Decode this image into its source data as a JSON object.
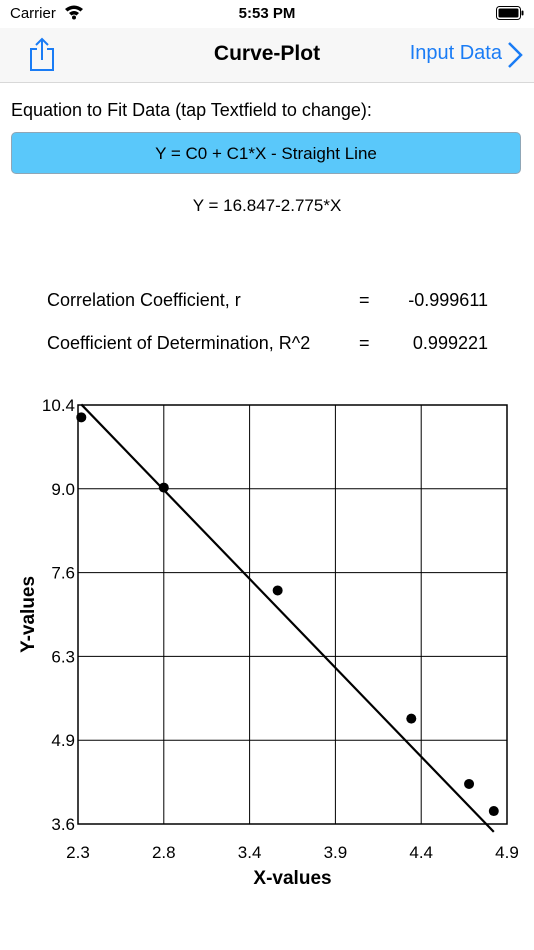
{
  "status_bar": {
    "carrier": "Carrier",
    "time": "5:53 PM"
  },
  "nav": {
    "title": "Curve-Plot",
    "right_label": "Input Data",
    "accent_color": "#1a7cf5"
  },
  "equation": {
    "label": "Equation to Fit Data (tap Textfield to change):",
    "field_value": "Y = C0 + C1*X  -  Straight Line",
    "field_color": "#5ac8fa",
    "fit_result": "Y = 16.847-2.775*X"
  },
  "stats": [
    {
      "label": "Correlation Coefficient, r",
      "eq": "=",
      "value": "-0.999611"
    },
    {
      "label": "Coefficient of Determination, R^2",
      "eq": "=",
      "value": "0.999221"
    }
  ],
  "chart_data": {
    "type": "scatter",
    "xlabel": "X-values",
    "ylabel": "Y-values",
    "xlim": [
      2.3,
      4.9
    ],
    "ylim": [
      3.6,
      10.4
    ],
    "x_ticks": [
      "2.3",
      "2.8",
      "3.4",
      "3.9",
      "4.4",
      "4.9"
    ],
    "y_ticks": [
      "10.4",
      "9.0",
      "7.6",
      "6.3",
      "4.9",
      "3.6"
    ],
    "grid": true,
    "points": [
      {
        "x": 2.32,
        "y": 10.2
      },
      {
        "x": 2.82,
        "y": 9.06
      },
      {
        "x": 3.51,
        "y": 7.39
      },
      {
        "x": 4.32,
        "y": 5.31
      },
      {
        "x": 4.67,
        "y": 4.25
      },
      {
        "x": 4.82,
        "y": 3.81
      }
    ],
    "fit_line": {
      "intercept": 16.847,
      "slope": -2.775
    }
  }
}
